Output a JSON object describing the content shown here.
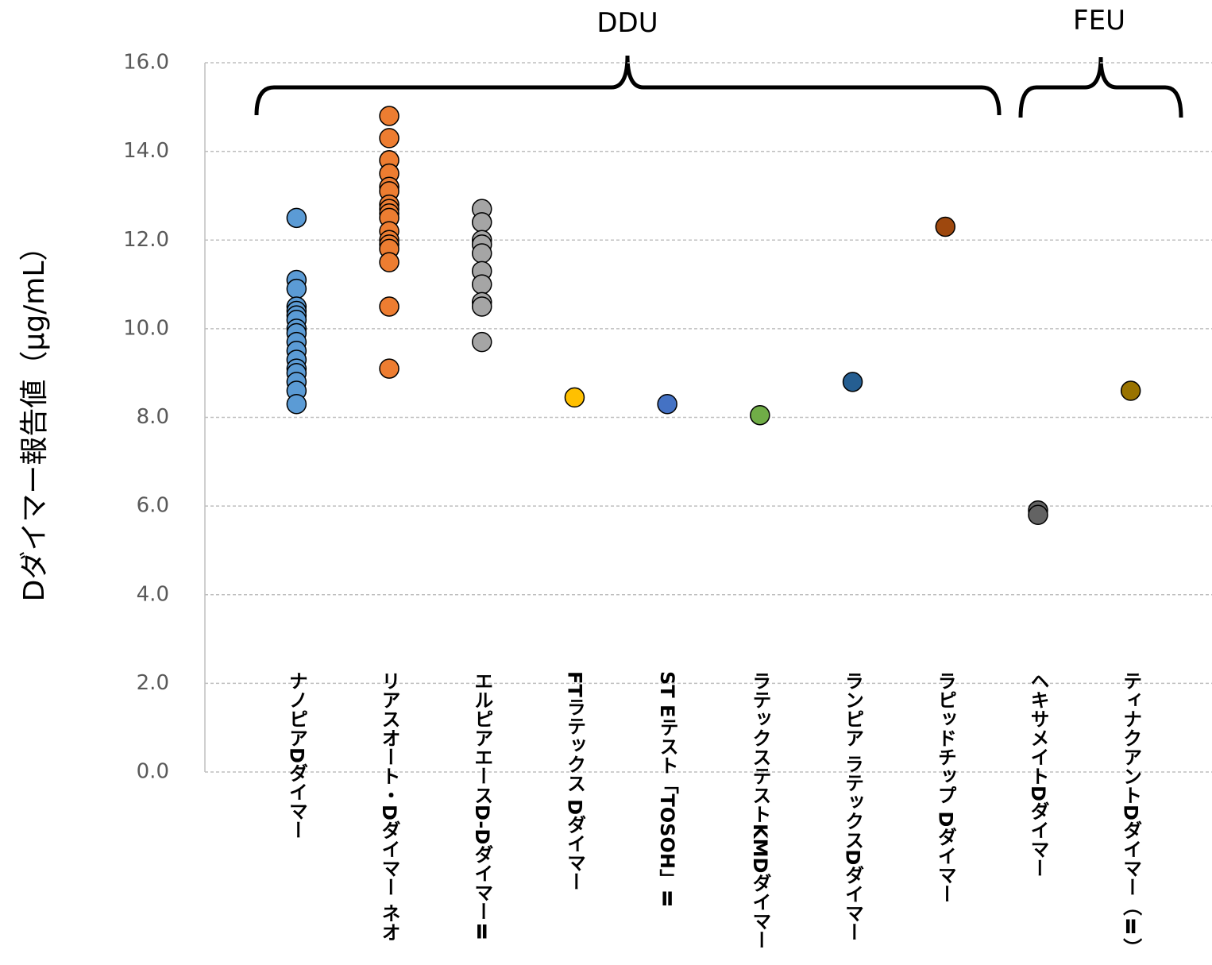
{
  "chart_data": {
    "type": "strip",
    "ylabel": "Dダイマー報告値（μg/mL）",
    "annotations": [
      "DDU",
      "FEU"
    ],
    "categories": [
      "ナノピアDダイマー",
      "リアスオート・Dダイマー ネオ",
      "エルピアエースD-DダイマーⅡ",
      "FTラテックス Dダイマー",
      "ST Eテスト「TOSOH」Ⅱ",
      "ラテックステストKMDダイマー",
      "ランピア ラテックスDダイマー",
      "ラピッドチップ Dダイマー",
      "ヘキサメイトDダイマー",
      "ティナクアントDダイマー（Ⅱ）"
    ],
    "colors": [
      "#5b9bd5",
      "#ed7d31",
      "#a5a5a5",
      "#ffc000",
      "#4472c4",
      "#70ad47",
      "#255e91",
      "#9e480e",
      "#636363",
      "#997300"
    ],
    "values": [
      [
        12.5,
        11.1,
        10.9,
        10.5,
        10.4,
        10.3,
        10.2,
        10.0,
        9.9,
        9.7,
        9.5,
        9.3,
        9.1,
        9.0,
        8.8,
        8.6,
        8.3
      ],
      [
        14.8,
        14.3,
        13.8,
        13.5,
        13.2,
        13.1,
        12.8,
        12.7,
        12.6,
        12.5,
        12.2,
        12.0,
        11.9,
        11.8,
        11.5,
        10.5,
        9.1
      ],
      [
        12.7,
        12.4,
        12.0,
        11.9,
        11.7,
        11.3,
        11.0,
        10.6,
        10.5,
        9.7
      ],
      [
        8.45
      ],
      [
        8.3
      ],
      [
        8.05
      ],
      [
        8.8
      ],
      [
        12.3
      ],
      [
        5.9,
        5.8
      ],
      [
        8.6
      ]
    ],
    "ylim": [
      0,
      16
    ],
    "yticks": [
      {
        "value": 0,
        "label": "0.0"
      },
      {
        "value": 2,
        "label": "2.0"
      },
      {
        "value": 4,
        "label": "4.0"
      },
      {
        "value": 6,
        "label": "6.0"
      },
      {
        "value": 8,
        "label": "8.0"
      },
      {
        "value": 10,
        "label": "10.0"
      },
      {
        "value": 12,
        "label": "12.0"
      },
      {
        "value": 14,
        "label": "14.0"
      },
      {
        "value": 16,
        "label": "16.0"
      }
    ],
    "grid": true
  }
}
